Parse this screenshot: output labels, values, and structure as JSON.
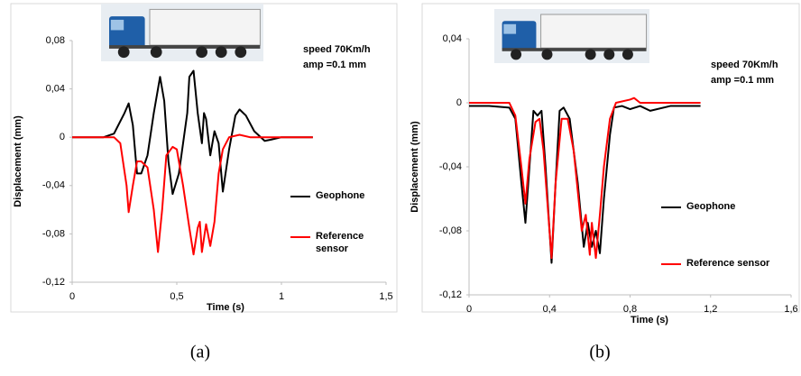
{
  "chart_data": [
    {
      "type": "line",
      "caption": "(a)",
      "xlabel": "Time (s)",
      "ylabel": "Displacement (mm)",
      "annotations": [
        "speed 70Km/h",
        "amp =0.1 mm"
      ],
      "xlim": [
        0,
        1.5
      ],
      "xticks": [
        0,
        {
          "value": 0.5,
          "label": "0,5"
        },
        1,
        {
          "value": 1.5,
          "label": "1,5"
        }
      ],
      "ylim": [
        -0.12,
        0.08
      ],
      "yticks": [
        {
          "value": 0.08,
          "label": "0,08"
        },
        {
          "value": 0.04,
          "label": "0,04"
        },
        0,
        {
          "value": -0.04,
          "label": "-0,04"
        },
        {
          "value": -0.08,
          "label": "-0,08"
        },
        {
          "value": -0.12,
          "label": "-0,12"
        }
      ],
      "grid": false,
      "series": [
        {
          "name": "Geophone",
          "color": "#000000",
          "x": [
            0,
            0.15,
            0.2,
            0.25,
            0.27,
            0.29,
            0.31,
            0.33,
            0.36,
            0.39,
            0.42,
            0.44,
            0.46,
            0.48,
            0.51,
            0.55,
            0.56,
            0.58,
            0.6,
            0.62,
            0.63,
            0.64,
            0.66,
            0.68,
            0.7,
            0.72,
            0.75,
            0.78,
            0.8,
            0.83,
            0.87,
            0.92,
            0.95,
            1,
            1.15
          ],
          "values": [
            0,
            0,
            0.003,
            0.02,
            0.028,
            0.01,
            -0.03,
            -0.03,
            -0.015,
            0.02,
            0.05,
            0.03,
            -0.02,
            -0.047,
            -0.03,
            0.02,
            0.05,
            0.055,
            0.02,
            -0.005,
            0.02,
            0.015,
            -0.015,
            0.005,
            -0.005,
            -0.045,
            -0.01,
            0.018,
            0.023,
            0.018,
            0.005,
            -0.003,
            -0.002,
            0,
            0
          ]
        },
        {
          "name": "Reference sensor",
          "color": "#ff0000",
          "x": [
            0,
            0.2,
            0.23,
            0.26,
            0.27,
            0.29,
            0.31,
            0.33,
            0.36,
            0.39,
            0.41,
            0.43,
            0.45,
            0.48,
            0.5,
            0.53,
            0.56,
            0.58,
            0.6,
            0.61,
            0.62,
            0.64,
            0.66,
            0.68,
            0.7,
            0.72,
            0.75,
            0.8,
            0.85,
            1.15
          ],
          "values": [
            0,
            0,
            -0.005,
            -0.04,
            -0.062,
            -0.04,
            -0.02,
            -0.02,
            -0.025,
            -0.06,
            -0.095,
            -0.06,
            -0.015,
            -0.008,
            -0.01,
            -0.04,
            -0.075,
            -0.097,
            -0.075,
            -0.07,
            -0.095,
            -0.072,
            -0.09,
            -0.07,
            -0.03,
            -0.01,
            0,
            0.002,
            0,
            0
          ]
        }
      ]
    },
    {
      "type": "line",
      "caption": "(b)",
      "xlabel": "Time (s)",
      "ylabel": "Displacement (mm)",
      "annotations": [
        "speed 70Km/h",
        "amp =0.1 mm"
      ],
      "xlim": [
        0,
        1.6
      ],
      "xticks": [
        0,
        {
          "value": 0.4,
          "label": "0,4"
        },
        {
          "value": 0.8,
          "label": "0,8"
        },
        {
          "value": 1.2,
          "label": "1,2"
        },
        {
          "value": 1.6,
          "label": "1,6"
        }
      ],
      "ylim": [
        -0.12,
        0.04
      ],
      "yticks": [
        {
          "value": 0.04,
          "label": "0,04"
        },
        0,
        {
          "value": -0.04,
          "label": "-0,04"
        },
        {
          "value": -0.08,
          "label": "-0,08"
        },
        {
          "value": -0.12,
          "label": "-0,12"
        }
      ],
      "grid": false,
      "series": [
        {
          "name": "Geophone",
          "color": "#000000",
          "x": [
            0,
            0.1,
            0.2,
            0.23,
            0.26,
            0.28,
            0.3,
            0.32,
            0.34,
            0.36,
            0.38,
            0.41,
            0.43,
            0.45,
            0.47,
            0.5,
            0.54,
            0.57,
            0.59,
            0.61,
            0.63,
            0.65,
            0.67,
            0.7,
            0.72,
            0.76,
            0.8,
            0.85,
            0.9,
            1,
            1.15
          ],
          "values": [
            -0.002,
            -0.002,
            -0.003,
            -0.01,
            -0.05,
            -0.075,
            -0.04,
            -0.005,
            -0.008,
            -0.005,
            -0.04,
            -0.1,
            -0.05,
            -0.005,
            -0.003,
            -0.01,
            -0.05,
            -0.09,
            -0.075,
            -0.09,
            -0.08,
            -0.094,
            -0.06,
            -0.02,
            -0.003,
            -0.002,
            -0.004,
            -0.002,
            -0.005,
            -0.002,
            -0.002
          ]
        },
        {
          "name": "Reference sensor",
          "color": "#ff0000",
          "x": [
            0,
            0.2,
            0.23,
            0.26,
            0.28,
            0.3,
            0.33,
            0.35,
            0.37,
            0.41,
            0.43,
            0.46,
            0.49,
            0.52,
            0.56,
            0.58,
            0.6,
            0.61,
            0.63,
            0.65,
            0.67,
            0.7,
            0.73,
            0.8,
            0.82,
            0.85,
            1.15
          ],
          "values": [
            0,
            0,
            -0.008,
            -0.04,
            -0.063,
            -0.035,
            -0.012,
            -0.01,
            -0.03,
            -0.097,
            -0.05,
            -0.01,
            -0.01,
            -0.03,
            -0.08,
            -0.07,
            -0.095,
            -0.075,
            -0.097,
            -0.07,
            -0.04,
            -0.01,
            0,
            0.002,
            0.003,
            0,
            0
          ]
        }
      ]
    }
  ]
}
